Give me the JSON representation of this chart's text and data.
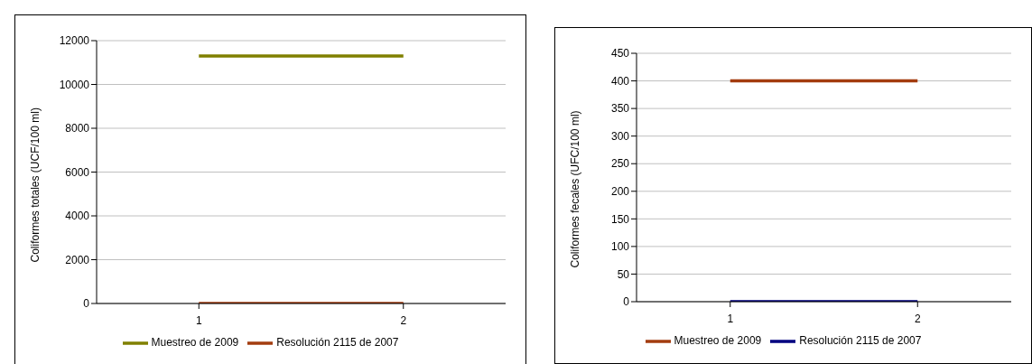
{
  "chart_data": [
    {
      "type": "line",
      "ylabel": "Coliformes totales (UCF/100 ml)",
      "categories": [
        "1",
        "2"
      ],
      "ylim": [
        0,
        12000
      ],
      "yticks": [
        0,
        2000,
        4000,
        6000,
        8000,
        10000,
        12000
      ],
      "grid": "y",
      "legend": "bottom",
      "marker": "none",
      "series": [
        {
          "name": "Muestreo de 2009",
          "color": "#808000",
          "values": [
            11300,
            11300
          ]
        },
        {
          "name": "Resolución 2115 de 2007",
          "color": "#a33c0f",
          "values": [
            0,
            0
          ]
        }
      ]
    },
    {
      "type": "line",
      "ylabel": "Coliformes  fecales (UFC/100 ml)",
      "categories": [
        "1",
        "2"
      ],
      "ylim": [
        0,
        450
      ],
      "yticks": [
        0,
        50,
        100,
        150,
        200,
        250,
        300,
        350,
        400,
        450
      ],
      "grid": "y",
      "legend": "bottom",
      "marker": "none",
      "series": [
        {
          "name": "Muestreo de 2009",
          "color": "#a33c0f",
          "values": [
            400,
            400
          ]
        },
        {
          "name": "Resolución 2115 de 2007",
          "color": "#000080",
          "values": [
            0,
            0
          ]
        }
      ]
    }
  ]
}
